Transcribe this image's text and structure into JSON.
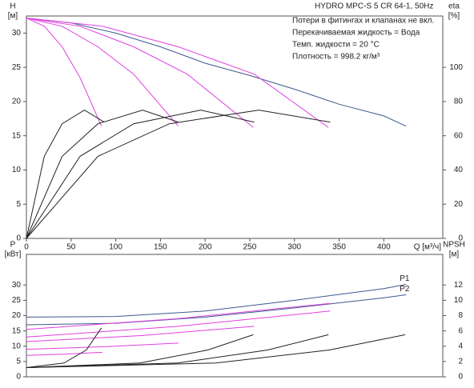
{
  "chart_data": [
    {
      "type": "line",
      "title": "HYDRO MPC-S 5 CR 64-1, 50Hz",
      "annotations": [
        "Потери в фитингах и клапанах не вкл.",
        "Перекачиваемая жидкость = Вода",
        "Темп. жидкости = 20 °C",
        "Плотность = 998.2 кг/м³"
      ],
      "ylabel": "H",
      "yunit": "[м]",
      "y2label": "eta",
      "y2unit": "[%]",
      "xlabel": "Q [м³/ч]",
      "xlim": [
        0,
        466
      ],
      "xticks": [
        0,
        50,
        100,
        150,
        200,
        250,
        300,
        350,
        400
      ],
      "ylim": [
        0,
        32.5
      ],
      "yticks": [
        0,
        5,
        10,
        15,
        20,
        25,
        30
      ],
      "y2lim": [
        0,
        130
      ],
      "y2ticks": [
        0,
        20,
        40,
        60,
        80,
        100
      ],
      "grid": false,
      "series": [
        {
          "color": "#3c5a8c",
          "x": [
            0,
            50,
            100,
            150,
            200,
            250,
            300,
            350,
            400,
            425
          ],
          "values": [
            32.2,
            31.5,
            30,
            28,
            25.6,
            23.8,
            21.8,
            19.6,
            17.9,
            16.4
          ]
        },
        {
          "color": "#e040e0",
          "x": [
            0,
            20,
            40,
            60,
            84
          ],
          "values": [
            32.2,
            31,
            28,
            23.5,
            16.4
          ]
        },
        {
          "color": "#e040e0",
          "x": [
            0,
            40,
            80,
            120,
            170
          ],
          "values": [
            32.2,
            31,
            28,
            24,
            16.4
          ]
        },
        {
          "color": "#e040e0",
          "x": [
            0,
            60,
            120,
            180,
            254
          ],
          "values": [
            32.2,
            31,
            28,
            24,
            16.2
          ]
        },
        {
          "color": "#e040e0",
          "x": [
            0,
            85,
            170,
            255,
            338
          ],
          "values": [
            32.2,
            31,
            28,
            24,
            16.2
          ]
        },
        {
          "color": "#222222",
          "axis": "y2",
          "x": [
            0,
            20,
            40,
            65,
            87
          ],
          "values": [
            0,
            48,
            67,
            75,
            68
          ]
        },
        {
          "color": "#222222",
          "axis": "y2",
          "x": [
            0,
            40,
            80,
            130,
            170
          ],
          "values": [
            0,
            48,
            67,
            75,
            68
          ]
        },
        {
          "color": "#222222",
          "axis": "y2",
          "x": [
            0,
            60,
            120,
            195,
            255
          ],
          "values": [
            0,
            48,
            67,
            75,
            68
          ]
        },
        {
          "color": "#222222",
          "axis": "y2",
          "x": [
            0,
            80,
            160,
            260,
            340
          ],
          "values": [
            0,
            48,
            67,
            75,
            68
          ]
        }
      ]
    },
    {
      "type": "line",
      "ylabel": "P",
      "yunit": "[кВт]",
      "y2label": "NPSH",
      "y2unit": "[м]",
      "xlim": [
        0,
        466
      ],
      "ylim": [
        0,
        40
      ],
      "yticks": [
        0,
        5,
        10,
        15,
        20,
        25,
        30
      ],
      "y2lim": [
        0,
        16
      ],
      "y2ticks": [
        0,
        2,
        4,
        6,
        8,
        10,
        12
      ],
      "grid": false,
      "series": [
        {
          "name": "P1",
          "color": "#3c5a8c",
          "x": [
            0,
            100,
            200,
            300,
            400,
            425
          ],
          "values": [
            19.5,
            19.7,
            21.5,
            25,
            28.8,
            30.2
          ]
        },
        {
          "name": "P2",
          "color": "#3c5a8c",
          "x": [
            0,
            100,
            200,
            300,
            400,
            425
          ],
          "values": [
            17,
            17.5,
            19.5,
            22.5,
            25.8,
            26.8
          ]
        },
        {
          "color": "#e040e0",
          "x": [
            0,
            170,
            340
          ],
          "values": [
            15.5,
            19,
            24
          ]
        },
        {
          "color": "#e040e0",
          "x": [
            0,
            170,
            340
          ],
          "values": [
            13,
            16.5,
            21.5
          ]
        },
        {
          "color": "#e040e0",
          "x": [
            0,
            130,
            255
          ],
          "values": [
            11.5,
            13.5,
            16.5
          ]
        },
        {
          "color": "#e040e0",
          "x": [
            0,
            85,
            170
          ],
          "values": [
            9,
            9.8,
            11
          ]
        },
        {
          "color": "#e040e0",
          "x": [
            0,
            40,
            85
          ],
          "values": [
            7,
            7.4,
            8
          ]
        },
        {
          "color": "#222222",
          "axis": "y2",
          "x": [
            0,
            42,
            67,
            84
          ],
          "values": [
            1.2,
            1.8,
            3.5,
            6.4
          ]
        },
        {
          "color": "#222222",
          "axis": "y2",
          "x": [
            0,
            127,
            203,
            254
          ],
          "values": [
            1.2,
            1.8,
            3.5,
            5.5
          ]
        },
        {
          "color": "#222222",
          "axis": "y2",
          "x": [
            0,
            169,
            270,
            338
          ],
          "values": [
            1.2,
            1.8,
            3.5,
            5.5
          ]
        },
        {
          "color": "#222222",
          "axis": "y2",
          "x": [
            0,
            212,
            339,
            424
          ],
          "values": [
            1.2,
            1.8,
            3.5,
            5.5
          ]
        }
      ]
    }
  ]
}
